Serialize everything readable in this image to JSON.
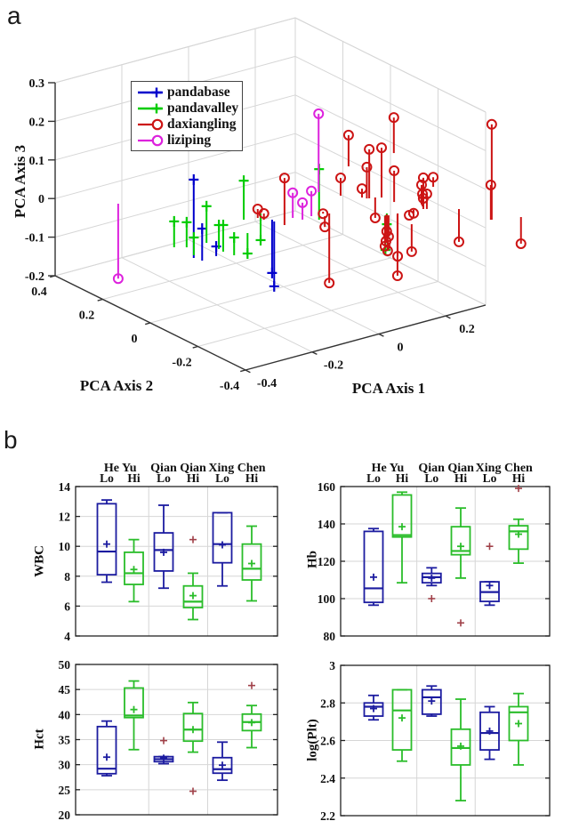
{
  "panel_labels": {
    "a": "a",
    "b": "b"
  },
  "pca_plot": {
    "xlabel": "PCA Axis 1",
    "ylabel": "PCA Axis 2",
    "zlabel": "PCA Axis 3",
    "x_ticks": [
      "-0.4",
      "-0.2",
      "0",
      "0.2"
    ],
    "y_ticks": [
      "0.4",
      "0.2",
      "0",
      "-0.2",
      "-0.4"
    ],
    "z_ticks": [
      "0.3",
      "0.2",
      "0.1",
      "0",
      "-0.1",
      "-0.2"
    ],
    "legend": [
      {
        "label": "pandabase",
        "color": "#0000cc",
        "marker": "plus"
      },
      {
        "label": "pandavalley",
        "color": "#00cc00",
        "marker": "plus"
      },
      {
        "label": "daxiangling",
        "color": "#cc1414",
        "marker": "circle"
      },
      {
        "label": "liziping",
        "color": "#dd22dd",
        "marker": "circle"
      }
    ]
  },
  "colors": {
    "box_blue": "#1c1ca0",
    "box_green": "#2abd2a",
    "outlier": "#a04048",
    "grid": "#d6d6d6",
    "axis": "#333333",
    "text": "#111111"
  },
  "chart_data": [
    {
      "type": "scatter",
      "subtype": "stem3d",
      "axes": {
        "x": {
          "label": "PCA Axis 1",
          "ticks": [
            -0.4,
            -0.2,
            0,
            0.2
          ],
          "range": [
            -0.4,
            0.32
          ]
        },
        "y": {
          "label": "PCA Axis 2",
          "ticks": [
            0.4,
            0.2,
            0,
            -0.2,
            -0.4
          ],
          "range": [
            -0.4,
            0.4
          ]
        },
        "z": {
          "label": "PCA Axis 3",
          "ticks": [
            0.3,
            0.2,
            0.1,
            0,
            -0.1,
            -0.2
          ],
          "range": [
            -0.2,
            0.3
          ]
        }
      },
      "baseline_z": 0,
      "series": [
        {
          "name": "pandabase",
          "marker": "plus",
          "color": "#0000cc",
          "points": [
            [
              -0.364,
              -0.132,
              0.203
            ],
            [
              -0.358,
              -0.159,
              0.083
            ],
            [
              -0.313,
              -0.155,
              0.025
            ],
            [
              -0.062,
              -0.038,
              -0.138
            ],
            [
              -0.065,
              -0.051,
              -0.168
            ]
          ]
        },
        {
          "name": "pandavalley",
          "marker": "plus",
          "color": "#00cc00",
          "points": [
            [
              -0.36,
              -0.044,
              0.067
            ],
            [
              -0.336,
              -0.063,
              0.065
            ],
            [
              -0.353,
              -0.117,
              0.046
            ],
            [
              -0.28,
              -0.068,
              0.095
            ],
            [
              -0.28,
              -0.12,
              0.062
            ],
            [
              -0.282,
              -0.141,
              0.069
            ],
            [
              -0.275,
              -0.177,
              0.046
            ],
            [
              -0.117,
              0.004,
              0.101
            ],
            [
              -0.162,
              -0.075,
              -0.053
            ],
            [
              -0.06,
              0.013,
              -0.069
            ],
            [
              0.029,
              -0.108,
              0.131
            ],
            [
              0.185,
              -0.174,
              -0.028
            ],
            [
              0.175,
              -0.182,
              -0.09
            ]
          ]
        },
        {
          "name": "daxiangling",
          "marker": "circle",
          "color": "#cc1414",
          "points": [
            [
              0.295,
              0.141,
              0.081
            ],
            [
              0.435,
              0.147,
              0.092
            ],
            [
              0.21,
              -0.065,
              0.127
            ],
            [
              0.237,
              -0.079,
              0.129
            ],
            [
              0.205,
              -0.062,
              0.081
            ],
            [
              0.165,
              -0.008,
              0.046
            ],
            [
              0.244,
              -0.122,
              0.081
            ],
            [
              0.199,
              -0.05,
              0.023
            ],
            [
              0.225,
              -0.069,
              -0.053
            ],
            [
              0.073,
              -0.089,
              -0.18
            ],
            [
              0.054,
              -0.097,
              -0.028
            ],
            [
              0.068,
              -0.07,
              -0.005
            ],
            [
              -0.083,
              -0.007,
              0.023
            ],
            [
              -0.078,
              -0.026,
              0.016
            ],
            [
              -0.059,
              -0.086,
              0.122
            ],
            [
              0.206,
              -0.19,
              -0.111
            ],
            [
              0.202,
              -0.195,
              -0.159
            ],
            [
              0.191,
              -0.27,
              -0.071
            ],
            [
              0.273,
              -0.204,
              0.081
            ],
            [
              0.379,
              -0.097,
              0.025
            ],
            [
              0.287,
              -0.177,
              0.051
            ],
            [
              0.282,
              -0.188,
              0.032
            ],
            [
              0.28,
              -0.194,
              0.023
            ],
            [
              0.235,
              -0.198,
              -0.009
            ],
            [
              0.251,
              -0.194,
              -0.009
            ],
            [
              0.364,
              -0.364,
              0.247
            ],
            [
              0.362,
              -0.363,
              0.09
            ],
            [
              0.342,
              -0.257,
              -0.085
            ],
            [
              0.431,
              -0.393,
              -0.069
            ],
            [
              0.28,
              -0.209,
              0.039
            ],
            [
              0.181,
              -0.179,
              -0.044
            ],
            [
              0.181,
              -0.187,
              -0.055
            ],
            [
              0.176,
              -0.183,
              -0.067
            ],
            [
              0.171,
              -0.186,
              -0.078
            ],
            [
              0.176,
              -0.19,
              -0.09
            ]
          ]
        },
        {
          "name": "liziping",
          "marker": "circle",
          "color": "#dd22dd",
          "points": [
            [
              -0.298,
              0.278,
              -0.194
            ],
            [
              0.136,
              0.044,
              0.203
            ],
            [
              -0.015,
              -0.059,
              0.065
            ],
            [
              0.028,
              -0.077,
              0.065
            ],
            [
              -0.003,
              -0.083,
              0.044
            ]
          ]
        }
      ]
    },
    {
      "type": "boxplot",
      "id": "wbc",
      "ylabel": "WBC",
      "ylim": [
        4,
        14
      ],
      "yticks": [
        14,
        12,
        10,
        8,
        6,
        4
      ],
      "categories": [
        "He Yu",
        "Qian Qian",
        "Xing Chen"
      ],
      "subcategories": [
        "Lo",
        "Hi"
      ],
      "boxes": [
        {
          "group": "He Yu",
          "sub": "Lo",
          "color": "blue",
          "whisker_lo": 7.6,
          "q1": 8.1,
          "median": 9.65,
          "q3": 12.85,
          "whisker_hi": 13.1,
          "mean": 10.15,
          "outliers": []
        },
        {
          "group": "He Yu",
          "sub": "Hi",
          "color": "green",
          "whisker_lo": 6.3,
          "q1": 7.45,
          "median": 8.2,
          "q3": 9.6,
          "whisker_hi": 10.45,
          "mean": 8.45,
          "outliers": []
        },
        {
          "group": "Qian Qian",
          "sub": "Lo",
          "color": "blue",
          "whisker_lo": 7.2,
          "q1": 8.35,
          "median": 9.75,
          "q3": 10.9,
          "whisker_hi": 12.75,
          "mean": 9.6,
          "outliers": []
        },
        {
          "group": "Qian Qian",
          "sub": "Hi",
          "color": "green",
          "whisker_lo": 5.1,
          "q1": 5.9,
          "median": 6.3,
          "q3": 7.35,
          "whisker_hi": 8.2,
          "mean": 6.7,
          "outliers": [
            10.45
          ]
        },
        {
          "group": "Xing Chen",
          "sub": "Lo",
          "color": "blue",
          "whisker_lo": 7.35,
          "q1": 8.9,
          "median": 10.15,
          "q3": 12.25,
          "whisker_hi": 12.25,
          "mean": 10.1,
          "outliers": []
        },
        {
          "group": "Xing Chen",
          "sub": "Hi",
          "color": "green",
          "whisker_lo": 6.35,
          "q1": 7.75,
          "median": 8.5,
          "q3": 10.15,
          "whisker_hi": 11.35,
          "mean": 8.85,
          "outliers": []
        }
      ]
    },
    {
      "type": "boxplot",
      "id": "hb",
      "ylabel": "Hb",
      "ylim": [
        80,
        160
      ],
      "yticks": [
        160,
        140,
        120,
        100,
        80
      ],
      "categories": [
        "He Yu",
        "Qian Qian",
        "Xing Chen"
      ],
      "subcategories": [
        "Lo",
        "Hi"
      ],
      "boxes": [
        {
          "group": "He Yu",
          "sub": "Lo",
          "color": "blue",
          "whisker_lo": 96.5,
          "q1": 98,
          "median": 105.5,
          "q3": 136,
          "whisker_hi": 137.5,
          "mean": 111.5,
          "outliers": []
        },
        {
          "group": "He Yu",
          "sub": "Hi",
          "color": "green",
          "whisker_lo": 108.5,
          "q1": 133,
          "median": 134,
          "q3": 155.5,
          "whisker_hi": 157,
          "mean": 138.5,
          "outliers": []
        },
        {
          "group": "Qian Qian",
          "sub": "Lo",
          "color": "blue",
          "whisker_lo": 107,
          "q1": 108.5,
          "median": 111.5,
          "q3": 113.5,
          "whisker_hi": 116.5,
          "mean": 111,
          "outliers": [
            100
          ]
        },
        {
          "group": "Qian Qian",
          "sub": "Hi",
          "color": "green",
          "whisker_lo": 111,
          "q1": 123.5,
          "median": 125.5,
          "q3": 138.5,
          "whisker_hi": 148.5,
          "mean": 128,
          "outliers": [
            87
          ]
        },
        {
          "group": "Xing Chen",
          "sub": "Lo",
          "color": "blue",
          "whisker_lo": 96.5,
          "q1": 98.5,
          "median": 103.5,
          "q3": 109,
          "whisker_hi": 109,
          "mean": 107,
          "outliers": [
            128
          ]
        },
        {
          "group": "Xing Chen",
          "sub": "Hi",
          "color": "green",
          "whisker_lo": 119,
          "q1": 126.5,
          "median": 136,
          "q3": 139,
          "whisker_hi": 142.5,
          "mean": 134.5,
          "outliers": [
            159
          ]
        }
      ]
    },
    {
      "type": "boxplot",
      "id": "hct",
      "ylabel": "Hct",
      "ylim": [
        20,
        50
      ],
      "yticks": [
        50,
        45,
        40,
        35,
        30,
        25,
        20
      ],
      "categories": [
        "He Yu",
        "Qian Qian",
        "Xing Chen"
      ],
      "subcategories": [
        "Lo",
        "Hi"
      ],
      "boxes": [
        {
          "group": "He Yu",
          "sub": "Lo",
          "color": "blue",
          "whisker_lo": 27.8,
          "q1": 28.2,
          "median": 29.2,
          "q3": 37.6,
          "whisker_hi": 38.7,
          "mean": 31.5,
          "outliers": []
        },
        {
          "group": "He Yu",
          "sub": "Hi",
          "color": "green",
          "whisker_lo": 33,
          "q1": 39.4,
          "median": 39.8,
          "q3": 45.3,
          "whisker_hi": 46.7,
          "mean": 41,
          "outliers": []
        },
        {
          "group": "Qian Qian",
          "sub": "Lo",
          "color": "blue",
          "whisker_lo": 30.2,
          "q1": 30.6,
          "median": 31.1,
          "q3": 31.6,
          "whisker_hi": 31.6,
          "mean": 31.3,
          "outliers": [
            34.8
          ]
        },
        {
          "group": "Qian Qian",
          "sub": "Hi",
          "color": "green",
          "whisker_lo": 32.5,
          "q1": 34.7,
          "median": 37,
          "q3": 40.2,
          "whisker_hi": 42.4,
          "mean": 37,
          "outliers": [
            24.7
          ]
        },
        {
          "group": "Xing Chen",
          "sub": "Lo",
          "color": "blue",
          "whisker_lo": 26.9,
          "q1": 28.3,
          "median": 29.1,
          "q3": 31.4,
          "whisker_hi": 34.5,
          "mean": 29.9,
          "outliers": []
        },
        {
          "group": "Xing Chen",
          "sub": "Hi",
          "color": "green",
          "whisker_lo": 33.4,
          "q1": 36.8,
          "median": 38.5,
          "q3": 40.1,
          "whisker_hi": 41.8,
          "mean": 38.4,
          "outliers": [
            45.8
          ]
        }
      ]
    },
    {
      "type": "boxplot",
      "id": "logplt",
      "ylabel": "log(Plt)",
      "ylim": [
        2.2,
        3
      ],
      "yticks": [
        3,
        2.8,
        2.6,
        2.4,
        2.2
      ],
      "categories": [
        "He Yu",
        "Qian Qian",
        "Xing Chen"
      ],
      "subcategories": [
        "Lo",
        "Hi"
      ],
      "boxes": [
        {
          "group": "He Yu",
          "sub": "Lo",
          "color": "blue",
          "whisker_lo": 2.71,
          "q1": 2.73,
          "median": 2.78,
          "q3": 2.8,
          "whisker_hi": 2.84,
          "mean": 2.77,
          "outliers": []
        },
        {
          "group": "He Yu",
          "sub": "Hi",
          "color": "green",
          "whisker_lo": 2.49,
          "q1": 2.55,
          "median": 2.76,
          "q3": 2.87,
          "whisker_hi": 2.87,
          "mean": 2.72,
          "outliers": []
        },
        {
          "group": "Qian Qian",
          "sub": "Lo",
          "color": "blue",
          "whisker_lo": 2.73,
          "q1": 2.74,
          "median": 2.83,
          "q3": 2.87,
          "whisker_hi": 2.89,
          "mean": 2.81,
          "outliers": []
        },
        {
          "group": "Qian Qian",
          "sub": "Hi",
          "color": "green",
          "whisker_lo": 2.28,
          "q1": 2.47,
          "median": 2.56,
          "q3": 2.66,
          "whisker_hi": 2.82,
          "mean": 2.57,
          "outliers": []
        },
        {
          "group": "Xing Chen",
          "sub": "Lo",
          "color": "blue",
          "whisker_lo": 2.5,
          "q1": 2.55,
          "median": 2.64,
          "q3": 2.75,
          "whisker_hi": 2.78,
          "mean": 2.65,
          "outliers": []
        },
        {
          "group": "Xing Chen",
          "sub": "Hi",
          "color": "green",
          "whisker_lo": 2.47,
          "q1": 2.6,
          "median": 2.75,
          "q3": 2.78,
          "whisker_hi": 2.85,
          "mean": 2.69,
          "outliers": []
        }
      ]
    }
  ]
}
